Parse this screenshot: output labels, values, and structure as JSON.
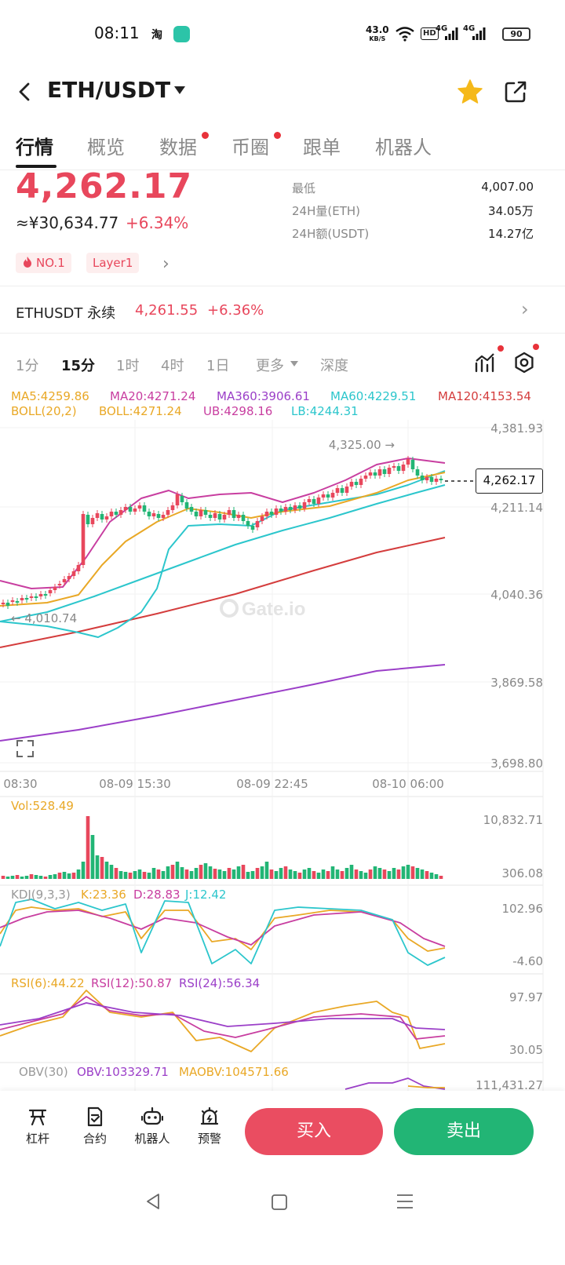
{
  "status_bar": {
    "time": "08:11",
    "taobao": "淘",
    "speed_value": "43.0",
    "speed_unit": "KB/S",
    "hd": "HD",
    "sig1": "4G",
    "sig2": "4G",
    "battery": "90"
  },
  "header": {
    "title": "ETH/USDT",
    "icons": [
      "back-icon",
      "dropdown-icon",
      "star-icon",
      "share-icon"
    ]
  },
  "tabs": [
    {
      "label": "行情",
      "active": true
    },
    {
      "label": "概览"
    },
    {
      "label": "数据",
      "dot": true
    },
    {
      "label": "币圈",
      "dot": true
    },
    {
      "label": "跟单"
    },
    {
      "label": "机器人"
    }
  ],
  "price": {
    "last": "4,262.17",
    "cny": "≈¥30,634.77",
    "change_pct": "+6.34%",
    "stats": [
      {
        "label": "最低",
        "value": "4,007.00"
      },
      {
        "label": "24H量(ETH)",
        "value": "34.05万"
      },
      {
        "label": "24H额(USDT)",
        "value": "14.27亿"
      }
    ],
    "tags": [
      "NO.1",
      "Layer1"
    ]
  },
  "perpetual": {
    "label": "ETHUSDT 永续",
    "price": "4,261.55",
    "change_pct": "+6.36%"
  },
  "intervals": [
    {
      "label": "1分"
    },
    {
      "label": "15分",
      "active": true
    },
    {
      "label": "1时"
    },
    {
      "label": "4时"
    },
    {
      "label": "1日"
    },
    {
      "label": "更多"
    },
    {
      "label": "深度"
    }
  ],
  "indicators": {
    "ma5": "MA5:4259.86",
    "ma20": "MA20:4271.24",
    "ma360": "MA360:3906.61",
    "ma60": "MA60:4229.51",
    "ma120": "MA120:4153.54",
    "boll_name": "BOLL(20,2)",
    "boll": "BOLL:4271.24",
    "ub": "UB:4298.16",
    "lb": "LB:4244.31",
    "vol": "Vol:528.49",
    "kdj_name": "KDJ(9,3,3)",
    "k": "K:23.36",
    "d": "D:28.83",
    "j": "J:12.42",
    "rsi6": "RSI(6):44.22",
    "rsi12": "RSI(12):50.87",
    "rsi24": "RSI(24):56.34",
    "obv_name": "OBV(30)",
    "obv": "OBV:103329.71",
    "maobv": "MAOBV:104571.66"
  },
  "chart_data": {
    "type": "candlestick",
    "y_ticks": [
      "4,381.93",
      "4,211.14",
      "4,040.36",
      "3,869.58",
      "3,698.80"
    ],
    "x_ticks": [
      "08:30",
      "08-09 15:30",
      "08-09 22:45",
      "08-10 06:00"
    ],
    "high_marker": "4,325.00",
    "low_marker": "4,010.74",
    "current_price": "4,262.17",
    "watermark": "Gate.io",
    "vol_ticks": [
      "10,832.71",
      "306.08"
    ],
    "kdj_ticks": [
      "102.96",
      "-4.60"
    ],
    "rsi_ticks": [
      "97.97",
      "30.05"
    ],
    "obv_ticks": [
      "111,431.27"
    ]
  },
  "bottom_nav": [
    {
      "label": "杠杆",
      "icon": "leverage-icon"
    },
    {
      "label": "合约",
      "icon": "contract-icon"
    },
    {
      "label": "机器人",
      "icon": "robot-icon"
    },
    {
      "label": "预警",
      "icon": "alert-icon"
    }
  ],
  "actions": {
    "buy": "买入",
    "sell": "卖出"
  },
  "colors": {
    "up": "#e8475c",
    "down": "#22b575",
    "ma5": "#e9a826",
    "ma20": "#c83ea0",
    "ma360": "#9b3fc8",
    "ma60": "#2cc6cc",
    "ma120": "#d43d3d"
  }
}
